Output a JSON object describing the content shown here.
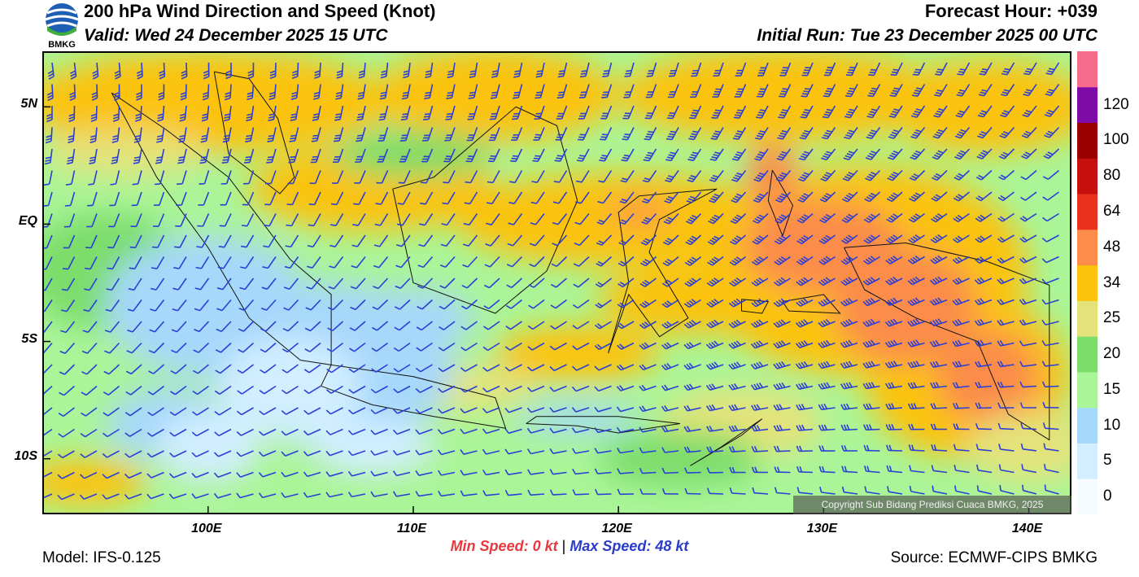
{
  "header": {
    "title": "200 hPa Wind Direction and Speed (Knot)",
    "valid": "Valid: Wed 24 December 2025 15 UTC",
    "forecast_hour": "Forecast Hour: +039",
    "initial_run": "Initial Run: Tue 23 December 2025 00 UTC",
    "logo_text": "BMKG"
  },
  "map": {
    "lon_range": [
      92,
      142
    ],
    "lat_range": [
      -12.3,
      7.3
    ],
    "lat_labels": [
      {
        "lat": 5,
        "text": "5N"
      },
      {
        "lat": 0,
        "text": "EQ"
      },
      {
        "lat": -5,
        "text": "5S"
      },
      {
        "lat": -10,
        "text": "10S"
      }
    ],
    "lon_labels": [
      {
        "lon": 100,
        "text": "100E"
      },
      {
        "lon": 110,
        "text": "110E"
      },
      {
        "lon": 120,
        "text": "120E"
      },
      {
        "lon": 130,
        "text": "130E"
      },
      {
        "lon": 140,
        "text": "140E"
      }
    ],
    "copyright": "Copyright Sub Bidang Prediksi Cuaca BMKG, 2025"
  },
  "colorbar": {
    "labels": [
      "0",
      "5",
      "10",
      "15",
      "20",
      "25",
      "34",
      "48",
      "64",
      "80",
      "100",
      "120"
    ],
    "colors": [
      "#f5fbff",
      "#d2eeff",
      "#a6d8fb",
      "#aaf598",
      "#7bdd6a",
      "#e4e37a",
      "#fbc30a",
      "#fb8c4a",
      "#e8321e",
      "#c80f0f",
      "#9b0000",
      "#7e0aa8",
      "#f56b8a"
    ]
  },
  "speed_stats": {
    "min_label": "Min Speed:",
    "min_value": "0 kt",
    "separator": "|",
    "max_label": "Max Speed:",
    "max_value": "48 kt"
  },
  "footer": {
    "model": "Model: IFS-0.125",
    "source": "Source: ECMWF-CIPS BMKG"
  }
}
